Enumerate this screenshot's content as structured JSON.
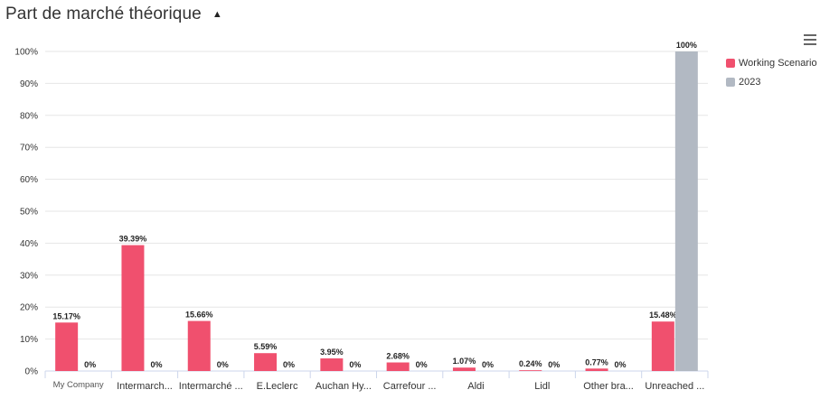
{
  "header": {
    "title": "Part de marché théorique"
  },
  "chart_data": {
    "type": "bar",
    "categories": [
      "My Company",
      "Intermarch...",
      "Intermarché ...",
      "E.Leclerc",
      "Auchan Hy...",
      "Carrefour ...",
      "Aldi",
      "Lidl",
      "Other bra...",
      "Unreached ..."
    ],
    "series": [
      {
        "name": "Working Scenario",
        "color": "#f0506e",
        "values": [
          15.17,
          39.39,
          15.66,
          5.59,
          3.95,
          2.68,
          1.07,
          0.24,
          0.77,
          15.48
        ],
        "labels": [
          "15.17%",
          "39.39%",
          "15.66%",
          "5.59%",
          "3.95%",
          "2.68%",
          "1.07%",
          "0.24%",
          "0.77%",
          "15.48%"
        ]
      },
      {
        "name": "2023",
        "color": "#b2b9c3",
        "values": [
          0,
          0,
          0,
          0,
          0,
          0,
          0,
          0,
          0,
          100
        ],
        "labels": [
          "0%",
          "0%",
          "0%",
          "0%",
          "0%",
          "0%",
          "0%",
          "0%",
          "0%",
          "100%"
        ]
      }
    ],
    "ylim": [
      0,
      100
    ],
    "yticks": [
      "0%",
      "10%",
      "20%",
      "30%",
      "40%",
      "50%",
      "60%",
      "70%",
      "80%",
      "90%",
      "100%"
    ],
    "grid": true,
    "legend": "top-right"
  }
}
